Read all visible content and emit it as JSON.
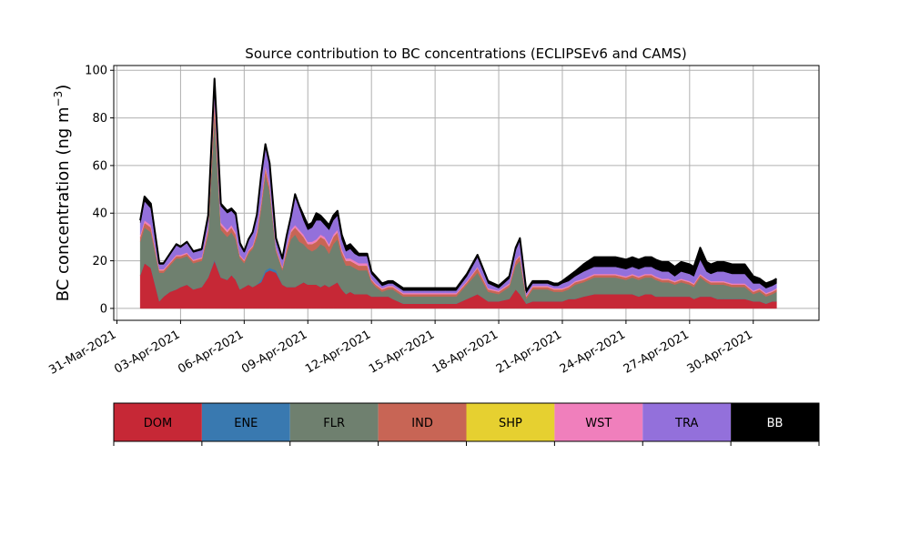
{
  "chart_data": {
    "type": "area",
    "stacked": true,
    "title": "Source contribution to BC concentrations (ECLIPSEv6 and CAMS)",
    "ylabel": "BC concentration (ng m",
    "ylabel_superscript": "−3",
    "ylabel_suffix": ")",
    "ylim": [
      -5,
      102
    ],
    "yticks": [
      0,
      20,
      40,
      60,
      80,
      100
    ],
    "xlim": [
      -0.15,
      33.1
    ],
    "xticks": [
      {
        "x": 0,
        "label": "31-Mar-2021"
      },
      {
        "x": 3,
        "label": "03-Apr-2021"
      },
      {
        "x": 6,
        "label": "06-Apr-2021"
      },
      {
        "x": 9,
        "label": "09-Apr-2021"
      },
      {
        "x": 12,
        "label": "12-Apr-2021"
      },
      {
        "x": 15,
        "label": "15-Apr-2021"
      },
      {
        "x": 18,
        "label": "18-Apr-2021"
      },
      {
        "x": 21,
        "label": "21-Apr-2021"
      },
      {
        "x": 24,
        "label": "24-Apr-2021"
      },
      {
        "x": 27,
        "label": "27-Apr-2021"
      },
      {
        "x": 30,
        "label": "30-Apr-2021"
      }
    ],
    "grid": true,
    "legend_position": "below",
    "x": [
      1.1,
      1.3,
      1.6,
      2.0,
      2.2,
      2.5,
      2.8,
      3.0,
      3.3,
      3.6,
      4.0,
      4.3,
      4.6,
      4.9,
      5.2,
      5.4,
      5.6,
      5.8,
      6.0,
      6.2,
      6.4,
      6.6,
      6.8,
      7.0,
      7.2,
      7.5,
      7.8,
      8.0,
      8.2,
      8.4,
      8.6,
      8.8,
      9.0,
      9.2,
      9.4,
      9.6,
      9.8,
      10.0,
      10.2,
      10.4,
      10.6,
      10.8,
      11.0,
      11.2,
      11.4,
      11.6,
      11.8,
      12.0,
      12.2,
      12.5,
      12.8,
      13.0,
      13.5,
      14.0,
      14.5,
      15.0,
      15.5,
      16.0,
      16.5,
      17.0,
      17.5,
      18.0,
      18.5,
      18.8,
      19.0,
      19.3,
      19.6,
      19.9,
      20.1,
      20.3,
      20.6,
      20.8,
      21.0,
      21.3,
      21.6,
      22.0,
      22.5,
      23.0,
      23.5,
      24.0,
      24.3,
      24.6,
      24.9,
      25.2,
      25.4,
      25.7,
      26.0,
      26.3,
      26.6,
      27.0,
      27.2,
      27.5,
      27.8,
      28.0,
      28.3,
      28.6,
      29.0,
      29.3,
      29.6,
      30.0,
      30.3,
      30.6,
      30.9,
      31.1
    ],
    "series": [
      {
        "name": "DOM",
        "color": "#c62836",
        "values": [
          14,
          19,
          17,
          3,
          5,
          7,
          8,
          9,
          10,
          8,
          9,
          13,
          20,
          13,
          12,
          14,
          12,
          8,
          9,
          10,
          9,
          10,
          11,
          15,
          16,
          15,
          10,
          9,
          9,
          9,
          10,
          11,
          10,
          10,
          10,
          9,
          10,
          9,
          10,
          11,
          8,
          6,
          7,
          6,
          6,
          6,
          6,
          5,
          5,
          5,
          5,
          4,
          2,
          2,
          2,
          2,
          2,
          2,
          4,
          6,
          3,
          3,
          4,
          8,
          6,
          2,
          3,
          3,
          3,
          3,
          3,
          3,
          3,
          4,
          4,
          5,
          6,
          6,
          6,
          6,
          6,
          5,
          6,
          6,
          5,
          5,
          5,
          5,
          5,
          5,
          4,
          5,
          5,
          5,
          4,
          4,
          4,
          4,
          4,
          3,
          3,
          2,
          3,
          3
        ]
      },
      {
        "name": "ENE",
        "color": "#3979b0",
        "values": [
          0,
          0,
          0,
          0,
          0,
          0,
          0,
          0,
          0,
          0,
          0,
          0,
          0.5,
          0,
          0,
          0,
          0,
          0,
          0,
          0,
          0,
          0,
          1,
          1,
          1,
          1,
          0,
          0,
          0,
          0,
          0,
          0,
          0,
          0,
          0,
          0,
          0,
          0,
          0,
          0,
          0,
          0,
          0,
          0,
          0,
          0,
          0,
          0,
          0,
          0,
          0,
          0,
          0,
          0,
          0,
          0,
          0,
          0,
          0,
          0,
          0,
          0,
          0,
          0,
          0,
          0,
          0,
          0,
          0,
          0,
          0,
          0,
          0,
          0,
          0,
          0,
          0,
          0,
          0,
          0,
          0,
          0,
          0,
          0,
          0,
          0,
          0,
          0,
          0,
          0,
          0,
          0,
          0,
          0,
          0,
          0,
          0,
          0,
          0,
          0,
          0,
          0,
          0,
          0
        ]
      },
      {
        "name": "FLR",
        "color": "#6f806f",
        "values": [
          14,
          15,
          15,
          12,
          10,
          11,
          13,
          12,
          12,
          11,
          11,
          18,
          60,
          20,
          18,
          18,
          17,
          13,
          10,
          13,
          16,
          20,
          30,
          40,
          32,
          8,
          6,
          14,
          20,
          22,
          18,
          16,
          15,
          14,
          15,
          18,
          16,
          14,
          17,
          18,
          14,
          12,
          11,
          11,
          10,
          10,
          10,
          6,
          4,
          2,
          3,
          4,
          3,
          3,
          3,
          3,
          3,
          3,
          6,
          9,
          4,
          3,
          5,
          10,
          14,
          2,
          5,
          5,
          5,
          5,
          4,
          4,
          4,
          4,
          6,
          6,
          7,
          7,
          7,
          6,
          7,
          7,
          7,
          7,
          7,
          6,
          6,
          5,
          6,
          5,
          5,
          8,
          6,
          5,
          6,
          6,
          5,
          5,
          5,
          3,
          4,
          3,
          3,
          4
        ]
      },
      {
        "name": "IND",
        "color": "#c86555",
        "values": [
          2,
          2,
          2,
          1,
          1,
          1,
          1,
          1,
          1,
          1,
          1,
          2,
          6,
          2,
          2,
          2,
          2,
          1,
          1,
          1,
          1,
          2,
          2,
          3,
          2,
          1,
          1,
          2,
          3,
          3,
          4,
          3,
          2,
          3,
          3,
          3,
          3,
          3,
          3,
          3,
          2,
          2,
          2,
          2,
          2,
          2,
          2,
          1,
          1,
          1,
          1,
          1,
          1,
          1,
          1,
          1,
          1,
          1,
          1,
          2,
          1,
          1,
          1,
          2,
          2,
          1,
          1,
          1,
          1,
          1,
          1,
          1,
          1,
          1,
          1,
          1,
          1,
          1,
          1,
          1,
          1,
          1,
          1,
          1,
          1,
          1,
          1,
          1,
          1,
          1,
          1,
          1,
          1,
          1,
          1,
          1,
          1,
          1,
          1,
          1,
          1,
          1,
          1,
          1
        ]
      },
      {
        "name": "SHP",
        "color": "#e6d030",
        "values": [
          0,
          0,
          0,
          0,
          0,
          0,
          0,
          0,
          0,
          0,
          0,
          0,
          0,
          0,
          0,
          0,
          0,
          0,
          0,
          0,
          0,
          0,
          0,
          0,
          0,
          0,
          0,
          0,
          0,
          0,
          0,
          0,
          0,
          0,
          0,
          0,
          0,
          0,
          0,
          0,
          0,
          0,
          0,
          0,
          0,
          0,
          0,
          0,
          0,
          0,
          0,
          0,
          0,
          0,
          0,
          0,
          0,
          0,
          0,
          0,
          0,
          0,
          0,
          0,
          0,
          0,
          0,
          0,
          0,
          0,
          0,
          0,
          0,
          0,
          0,
          0,
          0,
          0,
          0,
          0,
          0,
          0,
          0,
          0,
          0,
          0,
          0,
          0,
          0,
          0,
          0,
          0,
          0,
          0,
          0,
          0,
          0,
          0,
          0,
          0,
          0,
          0,
          0,
          0
        ]
      },
      {
        "name": "WST",
        "color": "#f07fbc",
        "values": [
          1,
          1,
          1,
          0.5,
          0.5,
          0.5,
          0.5,
          0.5,
          0.5,
          0.5,
          0.5,
          1,
          2,
          1,
          1,
          1,
          1,
          0.5,
          0.5,
          0.5,
          0.5,
          1,
          1,
          1,
          1,
          0.5,
          0.5,
          1,
          1,
          1,
          1,
          1,
          1,
          1,
          1,
          1,
          1,
          1,
          1,
          1,
          1,
          1,
          1,
          1,
          1,
          1,
          1,
          0.5,
          0.5,
          0.5,
          0.5,
          0.5,
          0.5,
          0.5,
          0.5,
          0.5,
          0.5,
          0.5,
          0.5,
          0.5,
          0.5,
          0.5,
          0.5,
          0.5,
          0.5,
          0.5,
          0.5,
          0.5,
          0.5,
          0.5,
          0.5,
          0.5,
          0.5,
          0.5,
          0.5,
          0.5,
          0.5,
          0.5,
          0.5,
          0.5,
          0.5,
          0.5,
          0.5,
          0.5,
          0.5,
          0.5,
          0.5,
          0.5,
          0.5,
          0.5,
          0.5,
          0.5,
          0.5,
          0.5,
          0.5,
          0.5,
          0.5,
          0.5,
          0.5,
          0.5,
          0.5,
          0.5,
          0.5,
          0.5
        ]
      },
      {
        "name": "TRA",
        "color": "#9370db",
        "values": [
          5,
          8,
          7,
          2,
          2,
          3,
          4,
          3,
          4,
          3,
          3,
          4,
          7,
          7,
          7,
          6,
          7,
          4,
          3,
          4,
          5,
          6,
          10,
          8,
          8,
          3,
          3,
          4,
          5,
          12,
          9,
          6,
          5,
          6,
          8,
          6,
          5,
          6,
          6,
          6,
          4,
          3,
          4,
          3,
          3,
          3,
          3,
          2,
          2,
          1,
          1,
          1,
          1,
          1,
          1,
          1,
          1,
          1,
          2,
          4,
          2,
          1,
          2,
          4,
          6,
          1,
          1,
          1,
          1,
          1,
          1,
          1,
          2,
          2,
          2,
          3,
          3,
          3,
          3,
          3,
          3,
          3,
          3,
          3,
          3,
          3,
          3,
          2,
          3,
          3,
          3,
          6,
          3,
          3,
          4,
          4,
          4,
          4,
          4,
          3,
          2,
          2,
          2,
          2
        ]
      },
      {
        "name": "BB",
        "color": "#000000",
        "values": [
          1,
          2,
          2,
          0.5,
          0.5,
          0.5,
          0.5,
          0.5,
          0.5,
          0.5,
          0.5,
          1,
          1,
          1,
          1,
          1,
          1,
          1,
          0.5,
          0.5,
          0.5,
          0.5,
          1,
          1,
          1,
          1,
          0.5,
          0.5,
          0.5,
          1,
          1,
          2,
          2,
          2,
          3,
          2,
          2,
          2,
          2,
          2,
          2,
          2,
          2,
          2,
          1,
          1,
          1,
          1,
          1,
          1,
          1,
          1,
          1,
          1,
          1,
          1,
          1,
          1,
          1,
          1,
          1,
          1,
          1,
          1,
          1,
          1,
          1,
          1,
          1,
          1,
          1,
          1,
          1,
          2,
          2,
          3,
          4,
          4,
          4,
          4,
          4,
          4,
          4,
          4,
          4,
          4,
          4,
          4,
          4,
          4,
          4,
          5,
          4,
          4,
          4,
          4,
          4,
          4,
          4,
          3,
          2,
          2,
          2,
          2
        ]
      }
    ]
  }
}
